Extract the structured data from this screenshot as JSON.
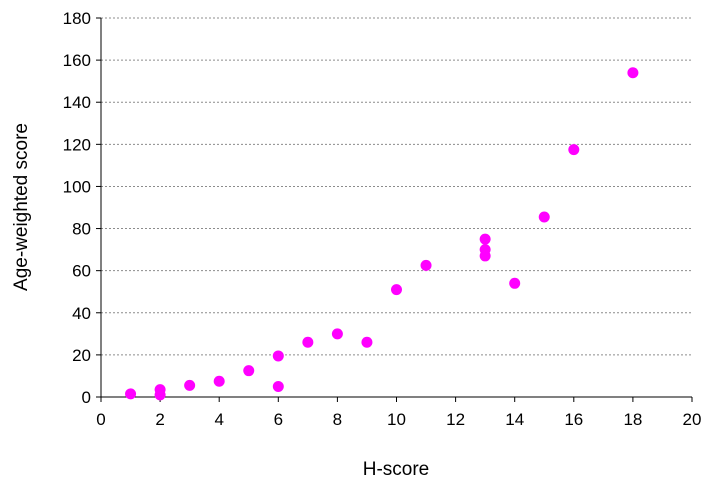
{
  "chart_data": {
    "type": "scatter",
    "title": "",
    "xlabel": "H-score",
    "ylabel": "Age-weighted score",
    "xlim": [
      0,
      20
    ],
    "ylim": [
      0,
      180
    ],
    "x_ticks": [
      0,
      2,
      4,
      6,
      8,
      10,
      12,
      14,
      16,
      18,
      20
    ],
    "y_ticks": [
      0,
      20,
      40,
      60,
      80,
      100,
      120,
      140,
      160,
      180
    ],
    "grid": "horizontal dotted",
    "legend": "none",
    "marker_color": "#ff00ff",
    "points": [
      {
        "x": 1,
        "y": 1.5
      },
      {
        "x": 2,
        "y": 3.5
      },
      {
        "x": 2,
        "y": 1
      },
      {
        "x": 3,
        "y": 5.5
      },
      {
        "x": 4,
        "y": 7.5
      },
      {
        "x": 5,
        "y": 12.5
      },
      {
        "x": 6,
        "y": 19.5
      },
      {
        "x": 6,
        "y": 5
      },
      {
        "x": 7,
        "y": 26
      },
      {
        "x": 8,
        "y": 30
      },
      {
        "x": 9,
        "y": 26
      },
      {
        "x": 10,
        "y": 51
      },
      {
        "x": 11,
        "y": 62.5
      },
      {
        "x": 13,
        "y": 75
      },
      {
        "x": 13,
        "y": 70
      },
      {
        "x": 13,
        "y": 67
      },
      {
        "x": 14,
        "y": 54
      },
      {
        "x": 15,
        "y": 85.5
      },
      {
        "x": 16,
        "y": 117.5
      },
      {
        "x": 18,
        "y": 154
      }
    ]
  }
}
